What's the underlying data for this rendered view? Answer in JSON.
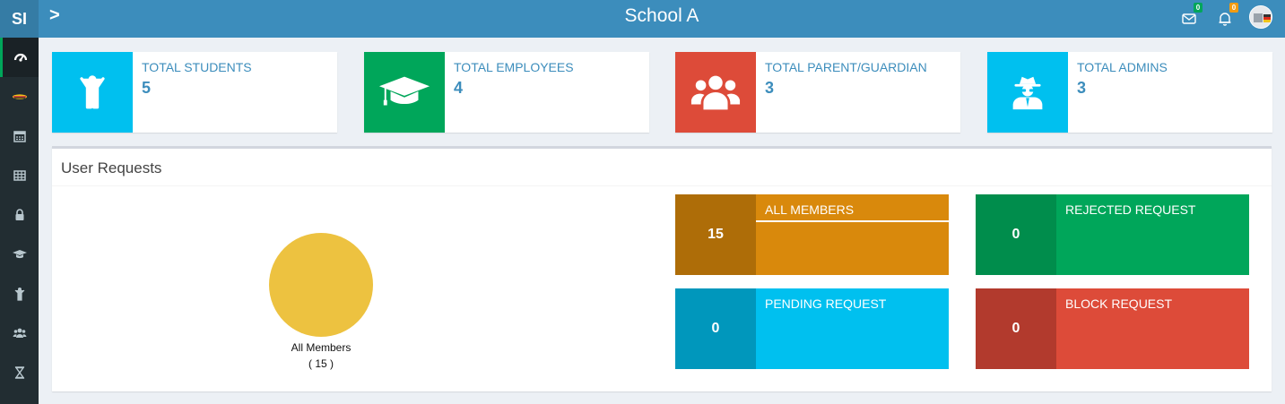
{
  "sidebar": {
    "logo": "SI",
    "items": [
      {
        "icon": "dashboard-icon",
        "active": true
      },
      {
        "icon": "school-flag-icon"
      },
      {
        "icon": "calendar-icon"
      },
      {
        "icon": "table-icon"
      },
      {
        "icon": "lock-icon"
      },
      {
        "icon": "graduation-cap-icon"
      },
      {
        "icon": "child-icon"
      },
      {
        "icon": "users-icon"
      },
      {
        "icon": "hourglass-icon"
      }
    ]
  },
  "header": {
    "toggle": ">",
    "title": "School A",
    "mail_badge": "0",
    "notifications_badge": "0",
    "colors": {
      "bar": "#3c8dbc",
      "mail_badge": "#00a65a",
      "notif_badge": "#f39c12"
    }
  },
  "stats": [
    {
      "label": "TOTAL STUDENTS",
      "value": "5",
      "icon": "child-icon",
      "color": "#00c0ef"
    },
    {
      "label": "TOTAL EMPLOYEES",
      "value": "4",
      "icon": "graduation-cap-icon",
      "color": "#00a65a"
    },
    {
      "label": "TOTAL PARENT/GUARDIAN",
      "value": "3",
      "icon": "users-icon",
      "color": "#dd4b39"
    },
    {
      "label": "TOTAL ADMINS",
      "value": "3",
      "icon": "user-secret-icon",
      "color": "#00c0ef"
    }
  ],
  "user_requests": {
    "title": "User Requests",
    "chart_data": {
      "type": "pie",
      "categories": [
        "All Members"
      ],
      "values": [
        15
      ],
      "legend": [
        {
          "label": "All Members",
          "count": "( 15 )"
        }
      ],
      "colors": [
        "#edc240"
      ]
    },
    "cards": [
      {
        "label": "ALL MEMBERS",
        "count": "15",
        "color": "#d9890c",
        "dark": "#ae6d08"
      },
      {
        "label": "REJECTED REQUEST",
        "count": "0",
        "color": "#00a65a",
        "dark": "#008d4c"
      },
      {
        "label": "PENDING REQUEST",
        "count": "0",
        "color": "#00c0ef",
        "dark": "#0097bc"
      },
      {
        "label": "BLOCK REQUEST",
        "count": "0",
        "color": "#dd4b39",
        "dark": "#b23a2d"
      }
    ]
  }
}
